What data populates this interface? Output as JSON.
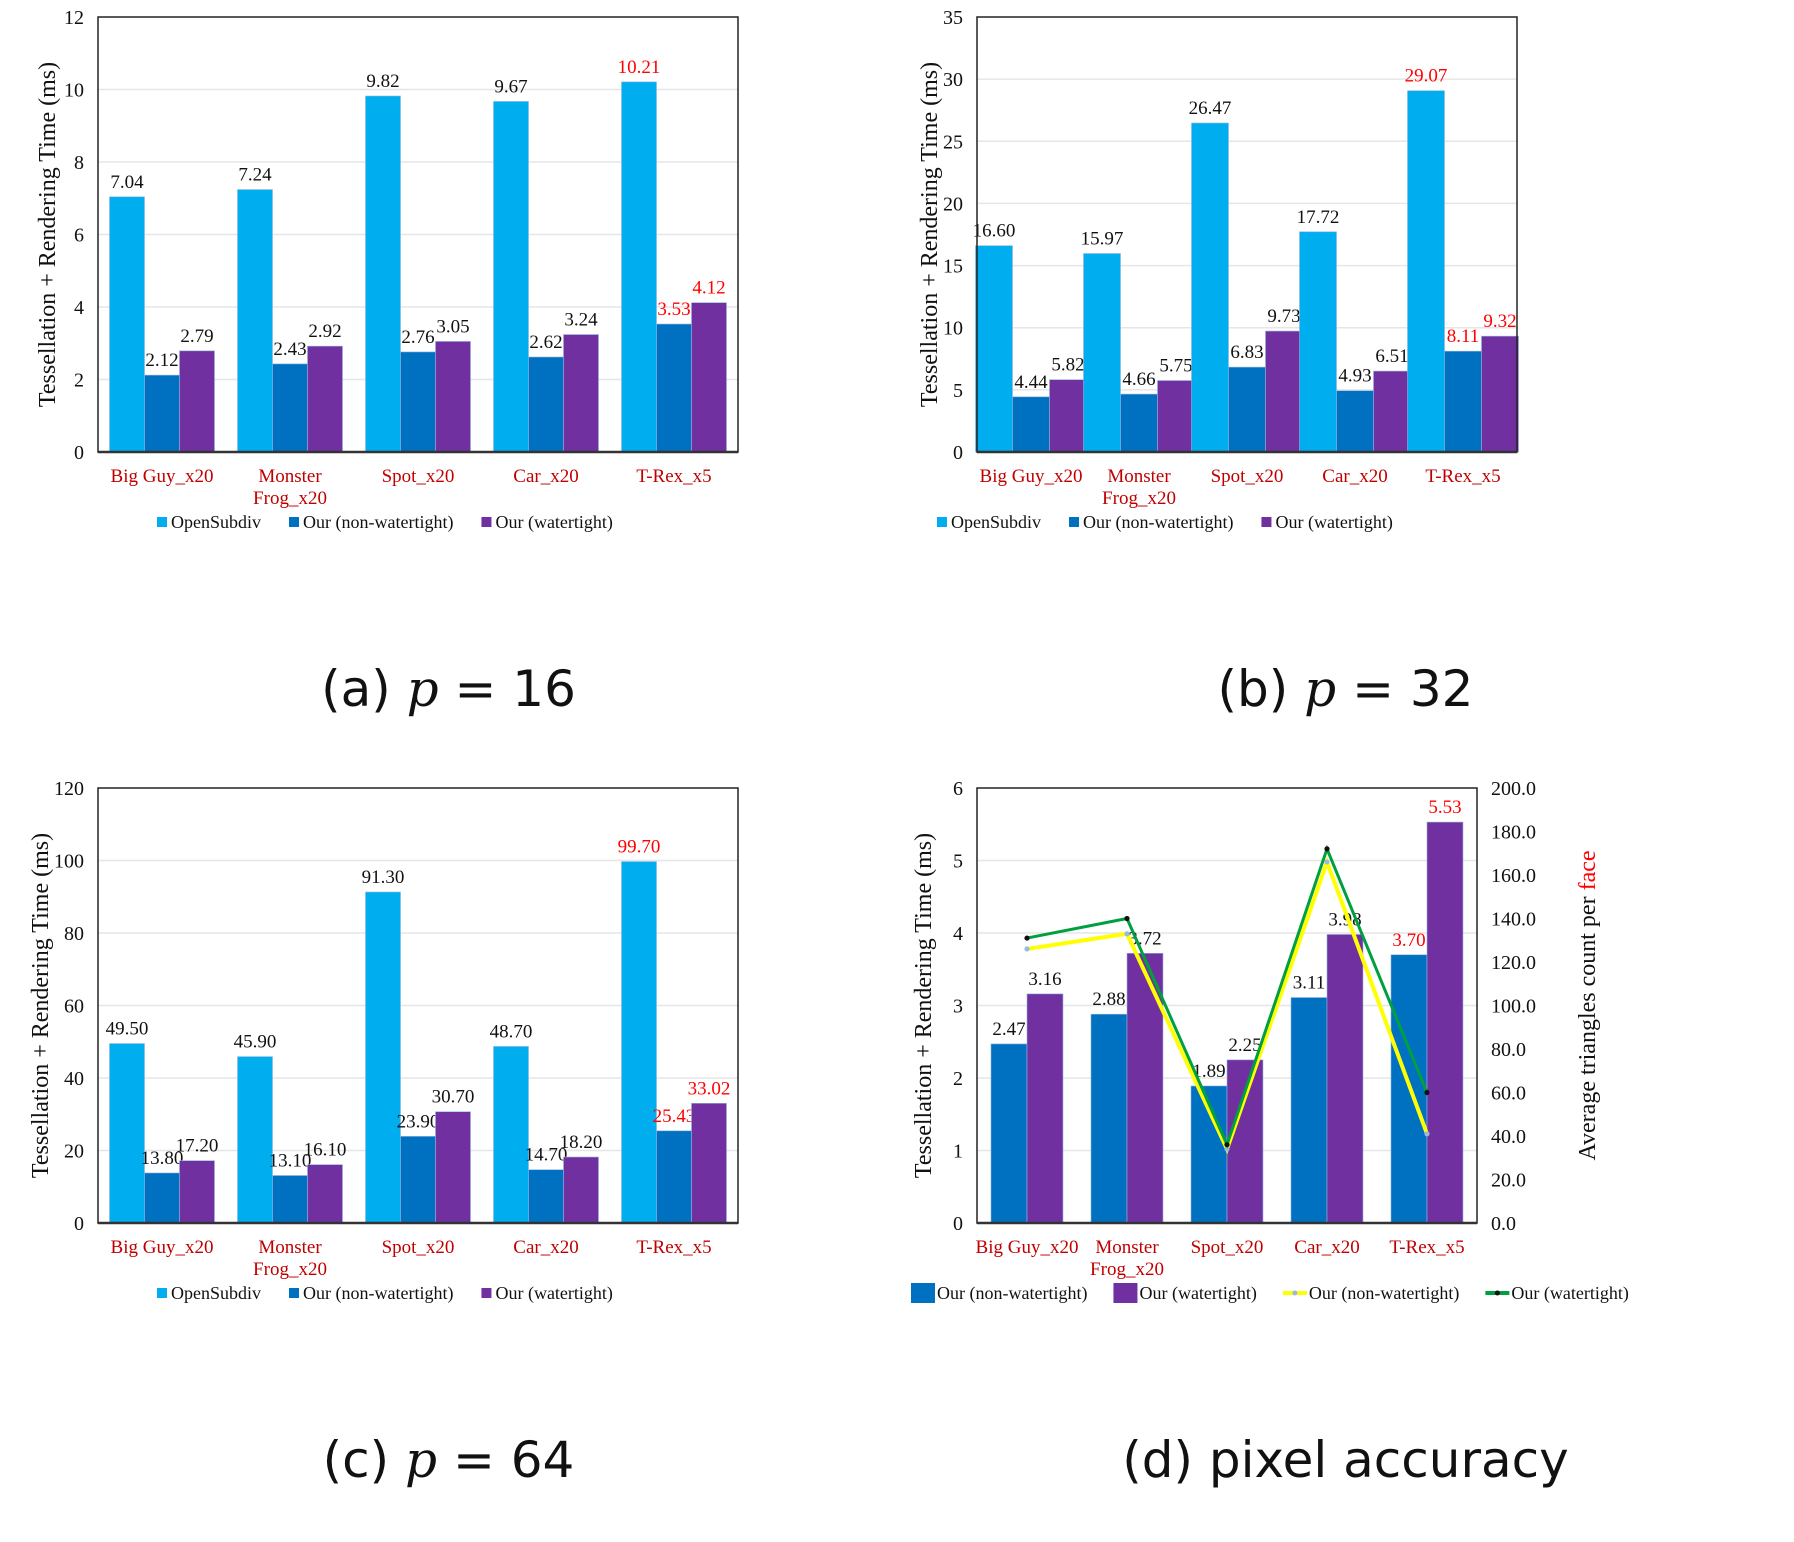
{
  "colors": {
    "opensubdiv": "#00AEEF",
    "non_watertight": "#0070C0",
    "watertight": "#7030A0",
    "line_non_watertight": "#FFFF00",
    "line_watertight": "#00A040",
    "highlight_label": "#FF0000",
    "category_label": "#C00000"
  },
  "chart_data": [
    {
      "id": "a",
      "type": "bar",
      "caption_prefix": "(a) ",
      "caption_var": "p",
      "caption_suffix": " = 16",
      "ylabel": "Tessellation + Rendering Time (ms)",
      "ylim": [
        0,
        12
      ],
      "yticks": [
        0,
        2,
        4,
        6,
        8,
        10,
        12
      ],
      "ytick_labels": [
        "0",
        "2",
        "4",
        "6",
        "8",
        "10",
        "12"
      ],
      "grid": true,
      "categories": [
        "Big Guy_x20",
        "Monster\nFrog_x20",
        "Spot_x20",
        "Car_x20",
        "T-Rex_x5"
      ],
      "series": [
        {
          "name": "OpenSubdiv",
          "values": [
            7.04,
            7.24,
            9.82,
            9.67,
            10.21
          ],
          "labels": [
            "7.04",
            "7.24",
            "9.82",
            "9.67",
            "10.21"
          ],
          "highlight": [
            false,
            false,
            false,
            false,
            true
          ]
        },
        {
          "name": "Our (non-watertight)",
          "values": [
            2.12,
            2.43,
            2.76,
            2.62,
            3.53
          ],
          "labels": [
            "2.12",
            "2.43",
            "2.76",
            "2.62",
            "3.53"
          ],
          "highlight": [
            false,
            false,
            false,
            false,
            true
          ]
        },
        {
          "name": "Our (watertight)",
          "values": [
            2.79,
            2.92,
            3.05,
            3.24,
            4.12
          ],
          "labels": [
            "2.79",
            "2.92",
            "3.05",
            "3.24",
            "4.12"
          ],
          "highlight": [
            false,
            false,
            false,
            false,
            true
          ]
        }
      ],
      "legend": [
        "OpenSubdiv",
        "Our (non-watertight)",
        "Our (watertight)"
      ],
      "legend_position": "bottom"
    },
    {
      "id": "b",
      "type": "bar",
      "caption_prefix": "(b) ",
      "caption_var": "p",
      "caption_suffix": " = 32",
      "ylabel": "Tessellation + Rendering Time (ms)",
      "ylim": [
        0,
        35
      ],
      "yticks": [
        0,
        5,
        10,
        15,
        20,
        25,
        30,
        35
      ],
      "ytick_labels": [
        "0",
        "5",
        "10",
        "15",
        "20",
        "25",
        "30",
        "35"
      ],
      "grid": true,
      "categories": [
        "Big Guy_x20",
        "Monster\nFrog_x20",
        "Spot_x20",
        "Car_x20",
        "T-Rex_x5"
      ],
      "series": [
        {
          "name": "OpenSubdiv",
          "values": [
            16.6,
            15.97,
            26.47,
            17.72,
            29.07
          ],
          "labels": [
            "16.60",
            "15.97",
            "26.47",
            "17.72",
            "29.07"
          ],
          "highlight": [
            false,
            false,
            false,
            false,
            true
          ]
        },
        {
          "name": "Our (non-watertight)",
          "values": [
            4.44,
            4.66,
            6.83,
            4.93,
            8.11
          ],
          "labels": [
            "4.44",
            "4.66",
            "6.83",
            "4.93",
            "8.11"
          ],
          "highlight": [
            false,
            false,
            false,
            false,
            true
          ]
        },
        {
          "name": "Our (watertight)",
          "values": [
            5.82,
            5.75,
            9.73,
            6.51,
            9.32
          ],
          "labels": [
            "5.82",
            "5.75",
            "9.73",
            "6.51",
            "9.32"
          ],
          "highlight": [
            false,
            false,
            false,
            false,
            true
          ]
        }
      ],
      "legend": [
        "OpenSubdiv",
        "Our (non-watertight)",
        "Our (watertight)"
      ],
      "legend_position": "bottom"
    },
    {
      "id": "c",
      "type": "bar",
      "caption_prefix": "(c) ",
      "caption_var": "p",
      "caption_suffix": " = 64",
      "ylabel": "Tessellation + Rendering Time (ms)",
      "ylim": [
        0,
        120
      ],
      "yticks": [
        0,
        20,
        40,
        60,
        80,
        100,
        120
      ],
      "ytick_labels": [
        "0",
        "20",
        "40",
        "60",
        "80",
        "100",
        "120"
      ],
      "grid": true,
      "categories": [
        "Big Guy_x20",
        "Monster\nFrog_x20",
        "Spot_x20",
        "Car_x20",
        "T-Rex_x5"
      ],
      "series": [
        {
          "name": "OpenSubdiv",
          "values": [
            49.5,
            45.9,
            91.3,
            48.7,
            99.7
          ],
          "labels": [
            "49.50",
            "45.90",
            "91.30",
            "48.70",
            "99.70"
          ],
          "highlight": [
            false,
            false,
            false,
            false,
            true
          ]
        },
        {
          "name": "Our (non-watertight)",
          "values": [
            13.8,
            13.1,
            23.9,
            14.7,
            25.43
          ],
          "labels": [
            "13.80",
            "13.10",
            "23.90",
            "14.70",
            "25.43"
          ],
          "highlight": [
            false,
            false,
            false,
            false,
            true
          ]
        },
        {
          "name": "Our (watertight)",
          "values": [
            17.2,
            16.1,
            30.7,
            18.2,
            33.02
          ],
          "labels": [
            "17.20",
            "16.10",
            "30.70",
            "18.20",
            "33.02"
          ],
          "highlight": [
            false,
            false,
            false,
            false,
            true
          ]
        }
      ],
      "legend": [
        "OpenSubdiv",
        "Our (non-watertight)",
        "Our (watertight)"
      ],
      "legend_position": "bottom"
    },
    {
      "id": "d",
      "type": "bar+line",
      "caption_prefix": "(d) pixel accuracy",
      "caption_var": "",
      "caption_suffix": "",
      "ylabel": "Tessellation + Rendering Time (ms)",
      "ylim": [
        0,
        6
      ],
      "yticks": [
        0,
        1,
        2,
        3,
        4,
        5,
        6
      ],
      "ytick_labels": [
        "0",
        "1",
        "2",
        "3",
        "4",
        "5",
        "6"
      ],
      "y2label_prefix": "Average triangles count per ",
      "y2label_highlight": "face",
      "y2lim": [
        0,
        200
      ],
      "y2ticks": [
        0,
        20,
        40,
        60,
        80,
        100,
        120,
        140,
        160,
        180,
        200
      ],
      "y2tick_labels": [
        "0.0",
        "20.0",
        "40.0",
        "60.0",
        "80.0",
        "100.0",
        "120.0",
        "140.0",
        "160.0",
        "180.0",
        "200.0"
      ],
      "grid": true,
      "categories": [
        "Big Guy_x20",
        "Monster\nFrog_x20",
        "Spot_x20",
        "Car_x20",
        "T-Rex_x5"
      ],
      "series": [
        {
          "name": "Our (non-watertight)",
          "kind": "bar",
          "values": [
            2.47,
            2.88,
            1.89,
            3.11,
            3.7
          ],
          "labels": [
            "2.47",
            "2.88",
            "1.89",
            "3.11",
            "3.70"
          ],
          "highlight": [
            false,
            false,
            false,
            false,
            true
          ]
        },
        {
          "name": "Our (watertight)",
          "kind": "bar",
          "values": [
            3.16,
            3.72,
            2.25,
            3.98,
            5.53
          ],
          "labels": [
            "3.16",
            "3.72",
            "2.25",
            "3.98",
            "5.53"
          ],
          "highlight": [
            false,
            false,
            false,
            false,
            true
          ]
        }
      ],
      "line_series": [
        {
          "name": "Our (non-watertight)",
          "kind": "line",
          "axis": "y2",
          "values": [
            126,
            133,
            34,
            166,
            41
          ]
        },
        {
          "name": "Our (watertight)",
          "kind": "line",
          "axis": "y2",
          "values": [
            131,
            140,
            36,
            172,
            60
          ]
        }
      ],
      "legend": [
        "Our (non-watertight)",
        "Our (watertight)",
        "Our (non-watertight)",
        "Our (watertight)"
      ],
      "legend_position": "bottom"
    }
  ]
}
